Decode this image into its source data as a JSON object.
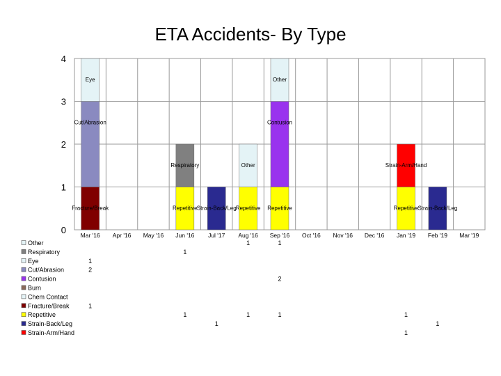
{
  "chart_data": {
    "type": "bar",
    "stacked": true,
    "title": "ETA Accidents- By Type",
    "xlabel": "",
    "ylabel": "",
    "ylim": [
      0,
      4
    ],
    "yticks": [
      "0",
      "1",
      "2",
      "3",
      "4"
    ],
    "grid": true,
    "legend": "bottom-left data table",
    "categories": [
      "Mar '16",
      "Apr '16",
      "May '16",
      "Jun '16",
      "Jul '17",
      "Aug '16",
      "Sep '16",
      "Oct '16",
      "Nov '16",
      "Dec '16",
      "Jan '19",
      "Feb '19",
      "Mar '19"
    ],
    "series": [
      {
        "name": "Other",
        "color": "#e4f3f6",
        "values": [
          null,
          null,
          null,
          null,
          null,
          1,
          1,
          null,
          null,
          null,
          null,
          null,
          null
        ],
        "labels": [
          "",
          "",
          "",
          "",
          "",
          "1",
          "1",
          "",
          "",
          "",
          "",
          "",
          ""
        ]
      },
      {
        "name": "Respiratory",
        "color": "#808080",
        "values": [
          null,
          null,
          null,
          1,
          null,
          null,
          null,
          null,
          null,
          null,
          null,
          null,
          null
        ],
        "labels": [
          "",
          "",
          "",
          "1",
          "",
          "",
          "",
          "",
          "",
          "",
          "",
          "",
          ""
        ]
      },
      {
        "name": "Eye",
        "color": "#e4f3f6",
        "values": [
          1,
          null,
          null,
          null,
          null,
          null,
          null,
          null,
          null,
          null,
          null,
          null,
          null
        ],
        "labels": [
          "1",
          "",
          "",
          "",
          "",
          "",
          "",
          "",
          "",
          "",
          "",
          "",
          ""
        ]
      },
      {
        "name": "Cut/Abrasion",
        "color": "#8a8ac0",
        "values": [
          2,
          null,
          null,
          null,
          null,
          null,
          null,
          null,
          null,
          null,
          null,
          null,
          null
        ],
        "labels": [
          "2",
          "",
          "",
          "",
          "",
          "",
          "",
          "",
          "",
          "",
          "",
          "",
          ""
        ]
      },
      {
        "name": "Contusion",
        "color": "#9933ee",
        "values": [
          null,
          null,
          null,
          null,
          null,
          null,
          2,
          null,
          null,
          null,
          null,
          null,
          null
        ],
        "labels": [
          "",
          "",
          "",
          "",
          "",
          "",
          "2",
          "",
          "",
          "",
          "",
          "",
          ""
        ]
      },
      {
        "name": "Burn",
        "color": "#8a6a5a",
        "values": [
          null,
          null,
          null,
          null,
          null,
          null,
          null,
          null,
          null,
          null,
          null,
          null,
          null
        ],
        "labels": [
          "",
          "",
          "",
          "",
          "",
          "",
          "",
          "",
          "",
          "",
          "",
          "",
          ""
        ]
      },
      {
        "name": "Chem Contact",
        "color": "#e4f3f6",
        "values": [
          null,
          null,
          null,
          null,
          null,
          null,
          null,
          null,
          null,
          null,
          null,
          null,
          null
        ],
        "labels": [
          "",
          "",
          "",
          "",
          "",
          "",
          "",
          "",
          "",
          "",
          "",
          "",
          ""
        ]
      },
      {
        "name": "Fracture/Break",
        "color": "#800000",
        "values": [
          1,
          null,
          null,
          null,
          null,
          null,
          null,
          null,
          null,
          null,
          null,
          null,
          null
        ],
        "labels": [
          "1",
          "",
          "",
          "",
          "",
          "",
          "",
          "",
          "",
          "",
          "",
          "",
          ""
        ]
      },
      {
        "name": "Repetitive",
        "color": "#ffff00",
        "values": [
          null,
          null,
          null,
          1,
          null,
          1,
          1,
          null,
          null,
          null,
          1,
          null,
          null
        ],
        "labels": [
          "",
          "",
          "",
          "1",
          "",
          "1",
          "1",
          "",
          "",
          "",
          "1",
          "",
          ""
        ]
      },
      {
        "name": "Strain-Back/Leg",
        "color": "#2a2a90",
        "values": [
          null,
          null,
          null,
          null,
          1,
          null,
          null,
          null,
          null,
          null,
          null,
          1,
          null
        ],
        "labels": [
          "",
          "",
          "",
          "",
          "1",
          "",
          "",
          "",
          "",
          "",
          "",
          "1",
          ""
        ]
      },
      {
        "name": "Strain-Arm/Hand",
        "color": "#ff0000",
        "values": [
          null,
          null,
          null,
          null,
          null,
          null,
          null,
          null,
          null,
          null,
          1,
          null,
          null
        ],
        "labels": [
          "",
          "",
          "",
          "",
          "",
          "",
          "",
          "",
          "",
          "",
          "1",
          "",
          ""
        ]
      }
    ],
    "stack_order": [
      "Fracture/Break",
      "Cut/Abrasion",
      "Eye",
      "Repetitive",
      "Strain-Arm/Hand",
      "Strain-Back/Leg",
      "Respiratory",
      "Contusion",
      "Other"
    ],
    "annotations": [
      {
        "category": "Mar '16",
        "series": "Fracture/Break",
        "text": "Fracture/Break"
      },
      {
        "category": "Mar '16",
        "series": "Cut/Abrasion",
        "text": "Cut/Abrasion"
      },
      {
        "category": "Mar '16",
        "series": "Eye",
        "text": "Eye"
      },
      {
        "category": "Jun '16",
        "series": "Repetitive",
        "text": "Repetitive"
      },
      {
        "category": "Jun '16",
        "series": "Respiratory",
        "text": "Respiratory"
      },
      {
        "category": "Jul '17",
        "series": "Strain-Back/Leg",
        "text": "Strain-Back/Leg"
      },
      {
        "category": "Aug '16",
        "series": "Repetitive",
        "text": "Repetitive"
      },
      {
        "category": "Aug '16",
        "series": "Other",
        "text": "Other"
      },
      {
        "category": "Sep '16",
        "series": "Repetitive",
        "text": "Repetitive"
      },
      {
        "category": "Sep '16",
        "series": "Contusion",
        "text": "Contusion"
      },
      {
        "category": "Sep '16",
        "series": "Other",
        "text": "Other"
      },
      {
        "category": "Jan '19",
        "series": "Strain-Arm/Hand",
        "text": "Strain-Arm/Hand"
      },
      {
        "category": "Jan '19",
        "series": "Repetitive",
        "text": "Repetitive"
      },
      {
        "category": "Feb '19",
        "series": "Strain-Back/Leg",
        "text": "Strain-Back/Leg"
      }
    ]
  }
}
